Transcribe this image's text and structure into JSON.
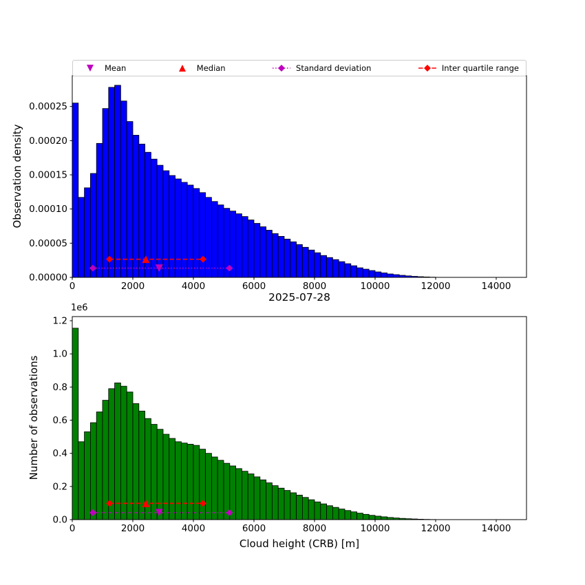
{
  "title": "2025-07-28",
  "xlabel": "Cloud height (CRB) [m]",
  "legend": {
    "items": [
      {
        "label": "Mean",
        "marker": "triangle-down",
        "color": "#bf00bf",
        "linestyle": "none"
      },
      {
        "label": "Median",
        "marker": "triangle-up",
        "color": "#ff0000",
        "linestyle": "none"
      },
      {
        "label": "Standard deviation",
        "marker": "diamond",
        "color": "#bf00bf",
        "linestyle": "dotted"
      },
      {
        "label": "Inter quartile range",
        "marker": "diamond",
        "color": "#ff0000",
        "linestyle": "dashed"
      }
    ]
  },
  "stats": {
    "mean_m": 2870,
    "median_m": 2430,
    "std_range_m": [
      680,
      5190
    ],
    "iqr_range_m": [
      1230,
      4320
    ]
  },
  "chart_data": [
    {
      "type": "bar",
      "subtype": "histogram",
      "ylabel": "Observation density",
      "bar_color": "#0000ff",
      "edge_color": "#000000",
      "bin_start": 0,
      "bin_width": 200,
      "xlim": [
        0,
        15000
      ],
      "ylim": [
        0,
        0.000295
      ],
      "grid": false,
      "xticks": [
        0,
        2000,
        4000,
        6000,
        8000,
        10000,
        12000,
        14000
      ],
      "xtick_labels": [
        "0",
        "2000",
        "4000",
        "6000",
        "8000",
        "10000",
        "12000",
        "14000"
      ],
      "yticks": [
        0,
        5e-05,
        0.0001,
        0.00015,
        0.0002,
        0.00025
      ],
      "ytick_labels": [
        "0.00000",
        "0.00005",
        "0.00010",
        "0.00015",
        "0.00020",
        "0.00025"
      ],
      "values": [
        0.000255,
        0.000117,
        0.000131,
        0.000152,
        0.000196,
        0.000247,
        0.000278,
        0.000281,
        0.000258,
        0.000228,
        0.000208,
        0.000195,
        0.000183,
        0.000173,
        0.000164,
        0.000156,
        0.000149,
        0.000144,
        0.000139,
        0.000135,
        0.00013,
        0.000124,
        0.000117,
        0.000111,
        0.000106,
        0.000101,
        9.7e-05,
        9.3e-05,
        8.9e-05,
        8.4e-05,
        7.9e-05,
        7.4e-05,
        6.9e-05,
        6.4e-05,
        6e-05,
        5.6e-05,
        5.2e-05,
        4.8e-05,
        4.4e-05,
        4e-05,
        3.6e-05,
        3.2e-05,
        2.9e-05,
        2.6e-05,
        2.3e-05,
        2e-05,
        1.7e-05,
        1.4e-05,
        1.2e-05,
        1e-05,
        8e-06,
        6.5e-06,
        5e-06,
        4e-06,
        3e-06,
        2.2e-06,
        1.5e-06,
        1e-06,
        6e-07,
        3e-07
      ],
      "overlays": {
        "std_line": {
          "x1": 680,
          "x2": 5190,
          "y": 1.35e-05,
          "color": "#bf00bf",
          "style": "dotted"
        },
        "mean_marker": {
          "x": 2870,
          "y": 1.35e-05,
          "shape": "triangle-down",
          "color": "#bf00bf"
        },
        "iqr_line": {
          "x1": 1230,
          "x2": 4320,
          "y": 2.65e-05,
          "color": "#ff0000",
          "style": "dashed"
        },
        "median_marker": {
          "x": 2430,
          "y": 2.65e-05,
          "shape": "triangle-up",
          "color": "#ff0000"
        }
      }
    },
    {
      "type": "bar",
      "subtype": "histogram",
      "ylabel": "Number of observations",
      "scale_label": "1e6",
      "bar_color": "#008000",
      "edge_color": "#000000",
      "bin_start": 0,
      "bin_width": 200,
      "xlim": [
        0,
        15000
      ],
      "ylim": [
        0,
        1.225
      ],
      "grid": false,
      "xticks": [
        0,
        2000,
        4000,
        6000,
        8000,
        10000,
        12000,
        14000
      ],
      "xtick_labels": [
        "0",
        "2000",
        "4000",
        "6000",
        "8000",
        "10000",
        "12000",
        "14000"
      ],
      "yticks": [
        0,
        0.2,
        0.4,
        0.6,
        0.8,
        1.0,
        1.2
      ],
      "ytick_labels": [
        "0.0",
        "0.2",
        "0.4",
        "0.6",
        "0.8",
        "1.0",
        "1.2"
      ],
      "values": [
        1.155,
        0.47,
        0.53,
        0.585,
        0.65,
        0.72,
        0.79,
        0.825,
        0.805,
        0.77,
        0.7,
        0.655,
        0.61,
        0.575,
        0.545,
        0.515,
        0.49,
        0.47,
        0.462,
        0.455,
        0.448,
        0.425,
        0.4,
        0.378,
        0.358,
        0.34,
        0.324,
        0.308,
        0.292,
        0.276,
        0.258,
        0.24,
        0.222,
        0.205,
        0.19,
        0.176,
        0.162,
        0.148,
        0.134,
        0.12,
        0.107,
        0.095,
        0.084,
        0.074,
        0.064,
        0.055,
        0.047,
        0.039,
        0.032,
        0.026,
        0.021,
        0.017,
        0.013,
        0.01,
        0.0075,
        0.0055,
        0.004,
        0.0025,
        0.0015,
        0.0008
      ],
      "overlays": {
        "std_line": {
          "x1": 680,
          "x2": 5190,
          "y": 0.042,
          "color": "#bf00bf",
          "style": "dotted"
        },
        "mean_marker": {
          "x": 2870,
          "y": 0.042,
          "shape": "triangle-down",
          "color": "#bf00bf"
        },
        "iqr_line": {
          "x1": 1230,
          "x2": 4320,
          "y": 0.098,
          "color": "#ff0000",
          "style": "dashed"
        },
        "median_marker": {
          "x": 2430,
          "y": 0.098,
          "shape": "triangle-up",
          "color": "#ff0000"
        }
      }
    }
  ]
}
